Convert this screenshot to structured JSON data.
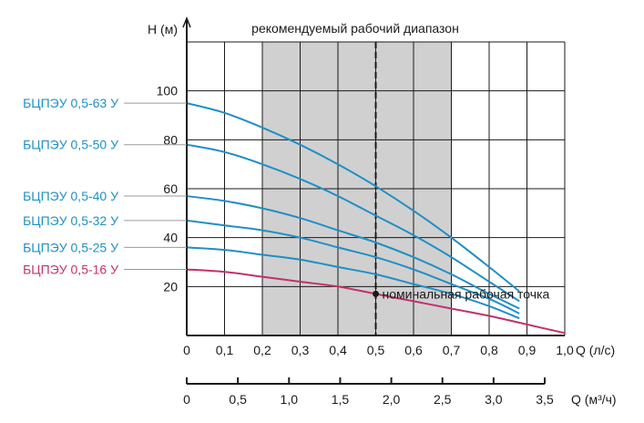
{
  "chart_data": {
    "type": "line",
    "title": "рекомендуемый рабочий диапазон",
    "ylabel": "H (м)",
    "xlabel": "Q (л/с)",
    "x2label": "Q (м³/ч)",
    "xlim": [
      0,
      1.0
    ],
    "ylim": [
      0,
      120
    ],
    "x_ticks": [
      "0",
      "0,1",
      "0,2",
      "0,3",
      "0,4",
      "0,5",
      "0,6",
      "0,7",
      "0,8",
      "0,9",
      "1,0"
    ],
    "y_ticks": [
      {
        "value": 20,
        "label": "20"
      },
      {
        "value": 40,
        "label": "40"
      },
      {
        "value": 60,
        "label": "60"
      },
      {
        "value": 80,
        "label": "80"
      },
      {
        "value": 100,
        "label": "100"
      }
    ],
    "x2_ticks": [
      {
        "value": 0,
        "label": "0"
      },
      {
        "value": 0.5,
        "label": "0,5"
      },
      {
        "value": 1.0,
        "label": "1,0"
      },
      {
        "value": 1.5,
        "label": "1,5"
      },
      {
        "value": 2.0,
        "label": "2,0"
      },
      {
        "value": 2.5,
        "label": "2,5"
      },
      {
        "value": 3.0,
        "label": "3,0"
      },
      {
        "value": 3.5,
        "label": "3,5"
      }
    ],
    "recommended_range": [
      0.2,
      0.7
    ],
    "nominal_point": {
      "x": 0.5,
      "y": 17,
      "label": "номинальная рабочая точка"
    },
    "grid": true,
    "colors": {
      "blue": "#1f8fc6",
      "magenta": "#c2316b",
      "band": "#d0d0d0"
    },
    "series": [
      {
        "name": "БЦПЭУ 0,5-63 У",
        "color": "#1f8fc6",
        "x": [
          0,
          0.1,
          0.2,
          0.3,
          0.4,
          0.5,
          0.6,
          0.7,
          0.8,
          0.88
        ],
        "y": [
          95,
          91,
          85,
          78,
          70,
          61,
          51,
          40,
          28,
          18
        ]
      },
      {
        "name": "БЦПЭУ 0,5-50 У",
        "color": "#1f8fc6",
        "x": [
          0,
          0.1,
          0.2,
          0.3,
          0.4,
          0.5,
          0.6,
          0.7,
          0.8,
          0.88
        ],
        "y": [
          78,
          75,
          70,
          64,
          57,
          49,
          41,
          32,
          22,
          14
        ]
      },
      {
        "name": "БЦПЭУ 0,5-40 У",
        "color": "#1f8fc6",
        "x": [
          0,
          0.1,
          0.2,
          0.3,
          0.4,
          0.5,
          0.6,
          0.7,
          0.8,
          0.88
        ],
        "y": [
          57,
          55,
          52,
          48,
          43,
          38,
          32,
          25,
          17,
          11
        ]
      },
      {
        "name": "БЦПЭУ 0,5-32 У",
        "color": "#1f8fc6",
        "x": [
          0,
          0.1,
          0.2,
          0.3,
          0.4,
          0.5,
          0.6,
          0.7,
          0.8,
          0.88
        ],
        "y": [
          47,
          45,
          43,
          40,
          36,
          32,
          27,
          21,
          15,
          9
        ]
      },
      {
        "name": "БЦПЭУ 0,5-25 У",
        "color": "#1f8fc6",
        "x": [
          0,
          0.1,
          0.2,
          0.3,
          0.4,
          0.5,
          0.6,
          0.7,
          0.8,
          0.88
        ],
        "y": [
          36,
          35,
          33,
          31,
          28,
          25,
          21,
          17,
          12,
          7
        ]
      },
      {
        "name": "БЦПЭУ 0,5-16 У",
        "color": "#c2316b",
        "x": [
          0,
          0.1,
          0.2,
          0.3,
          0.4,
          0.5,
          0.6,
          0.7,
          0.8,
          0.9,
          1.0
        ],
        "y": [
          27,
          26,
          24,
          22,
          20,
          17,
          14,
          11,
          8,
          4.5,
          1
        ]
      }
    ]
  }
}
